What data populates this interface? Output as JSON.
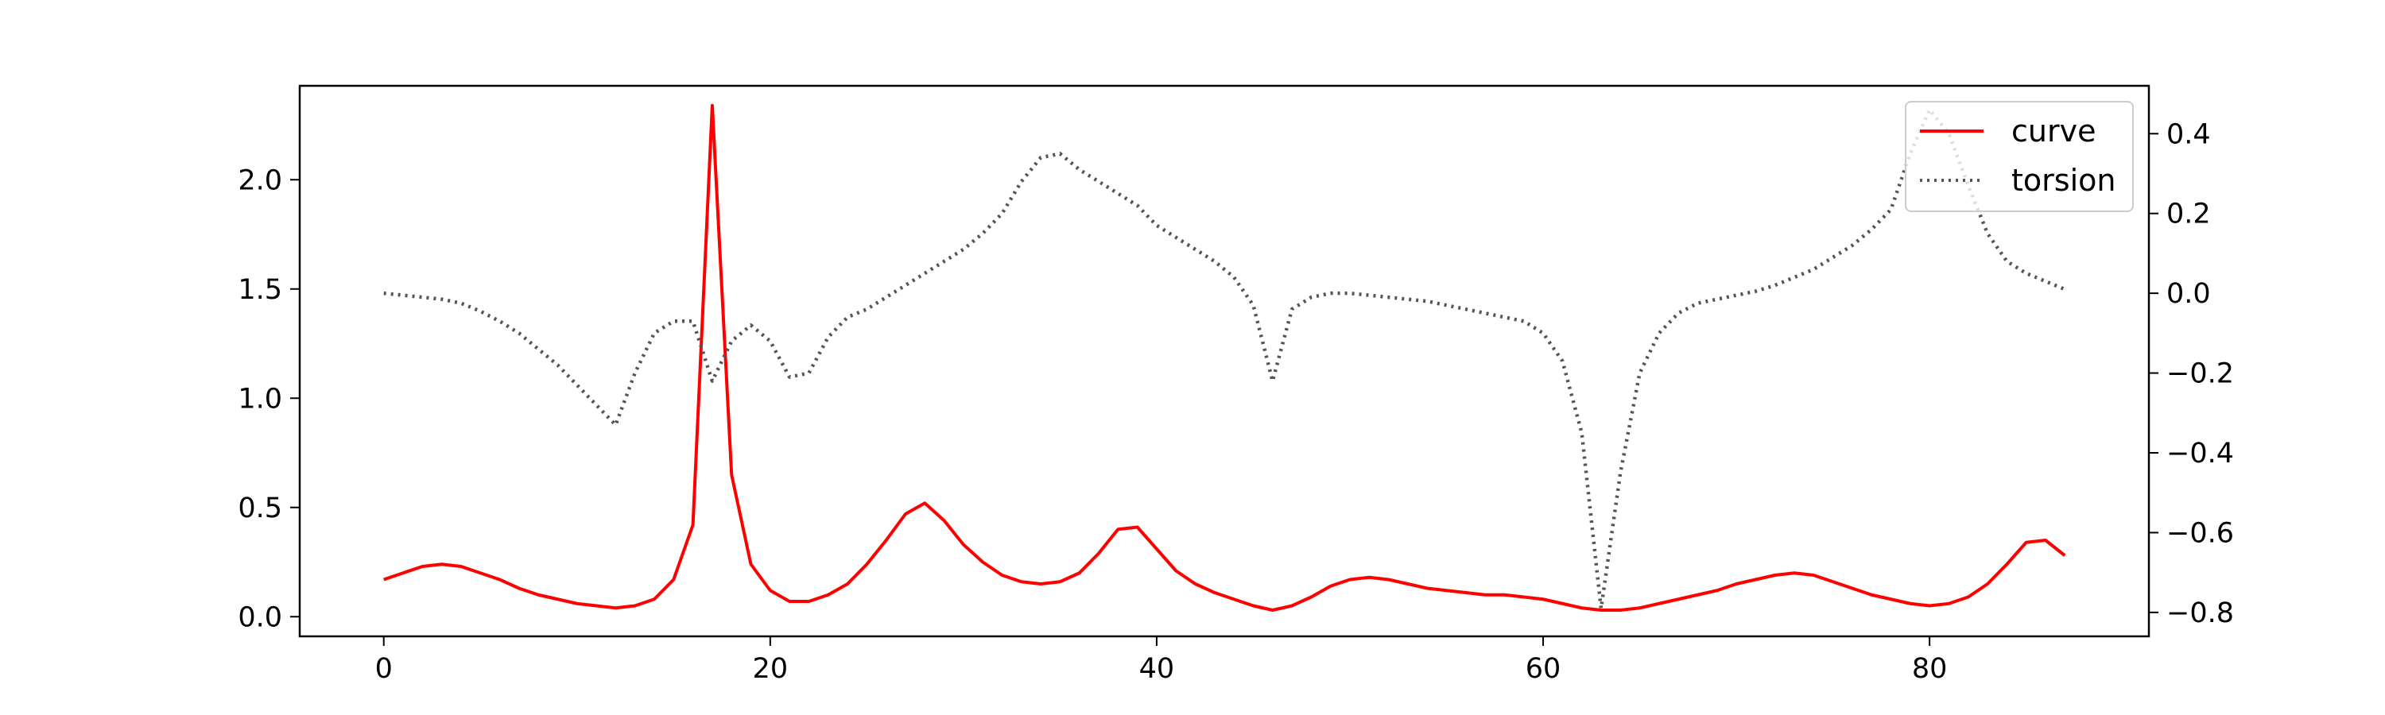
{
  "chart_data": {
    "type": "line",
    "title": "",
    "xlabel": "",
    "ylabel": "",
    "ylabel_right": "",
    "xlim": [
      -4.35,
      91.35
    ],
    "ylim": [
      -0.09,
      2.43
    ],
    "ylim_right": [
      -0.86,
      0.52
    ],
    "x_ticks": [
      0,
      20,
      40,
      60,
      80
    ],
    "y_ticks": [
      0.0,
      0.5,
      1.0,
      1.5,
      2.0
    ],
    "y_ticks_right": [
      -0.8,
      -0.6,
      -0.4,
      -0.2,
      0.0,
      0.2,
      0.4
    ],
    "grid": false,
    "legend_position": "top-right",
    "x": [
      0,
      1,
      2,
      3,
      4,
      5,
      6,
      7,
      8,
      9,
      10,
      11,
      12,
      13,
      14,
      15,
      16,
      17,
      18,
      19,
      20,
      21,
      22,
      23,
      24,
      25,
      26,
      27,
      28,
      29,
      30,
      31,
      32,
      33,
      34,
      35,
      36,
      37,
      38,
      39,
      40,
      41,
      42,
      43,
      44,
      45,
      46,
      47,
      48,
      49,
      50,
      51,
      52,
      53,
      54,
      55,
      56,
      57,
      58,
      59,
      60,
      61,
      62,
      63,
      64,
      65,
      66,
      67,
      68,
      69,
      70,
      71,
      72,
      73,
      74,
      75,
      76,
      77,
      78,
      79,
      80,
      81,
      82,
      83,
      84,
      85,
      86,
      87
    ],
    "series": [
      {
        "name": "curve",
        "axis": "left",
        "color": "#ff0000",
        "style": "solid",
        "values": [
          0.17,
          0.2,
          0.23,
          0.24,
          0.23,
          0.2,
          0.17,
          0.13,
          0.1,
          0.08,
          0.06,
          0.05,
          0.04,
          0.05,
          0.08,
          0.17,
          0.42,
          2.34,
          0.65,
          0.24,
          0.12,
          0.07,
          0.07,
          0.1,
          0.15,
          0.24,
          0.35,
          0.47,
          0.52,
          0.44,
          0.33,
          0.25,
          0.19,
          0.16,
          0.15,
          0.16,
          0.2,
          0.29,
          0.4,
          0.41,
          0.31,
          0.21,
          0.15,
          0.11,
          0.08,
          0.05,
          0.03,
          0.05,
          0.09,
          0.14,
          0.17,
          0.18,
          0.17,
          0.15,
          0.13,
          0.12,
          0.11,
          0.1,
          0.1,
          0.09,
          0.08,
          0.06,
          0.04,
          0.03,
          0.03,
          0.04,
          0.06,
          0.08,
          0.1,
          0.12,
          0.15,
          0.17,
          0.19,
          0.2,
          0.19,
          0.16,
          0.13,
          0.1,
          0.08,
          0.06,
          0.05,
          0.06,
          0.09,
          0.15,
          0.24,
          0.34,
          0.35,
          0.28
        ]
      },
      {
        "name": "torsion",
        "axis": "right",
        "color": "#555555",
        "style": "dotted",
        "values": [
          0.0,
          -0.005,
          -0.01,
          -0.015,
          -0.025,
          -0.045,
          -0.07,
          -0.1,
          -0.14,
          -0.18,
          -0.23,
          -0.28,
          -0.33,
          -0.2,
          -0.1,
          -0.07,
          -0.07,
          -0.22,
          -0.12,
          -0.08,
          -0.12,
          -0.21,
          -0.2,
          -0.11,
          -0.06,
          -0.04,
          -0.01,
          0.02,
          0.05,
          0.08,
          0.11,
          0.15,
          0.2,
          0.28,
          0.34,
          0.35,
          0.31,
          0.28,
          0.25,
          0.22,
          0.17,
          0.14,
          0.11,
          0.08,
          0.04,
          -0.03,
          -0.22,
          -0.04,
          -0.01,
          0.0,
          0.0,
          -0.005,
          -0.01,
          -0.015,
          -0.02,
          -0.03,
          -0.04,
          -0.05,
          -0.06,
          -0.07,
          -0.1,
          -0.17,
          -0.35,
          -0.79,
          -0.45,
          -0.2,
          -0.1,
          -0.05,
          -0.025,
          -0.015,
          -0.005,
          0.005,
          0.02,
          0.04,
          0.06,
          0.09,
          0.12,
          0.16,
          0.21,
          0.35,
          0.46,
          0.4,
          0.27,
          0.15,
          0.08,
          0.05,
          0.03,
          0.01
        ]
      }
    ]
  }
}
